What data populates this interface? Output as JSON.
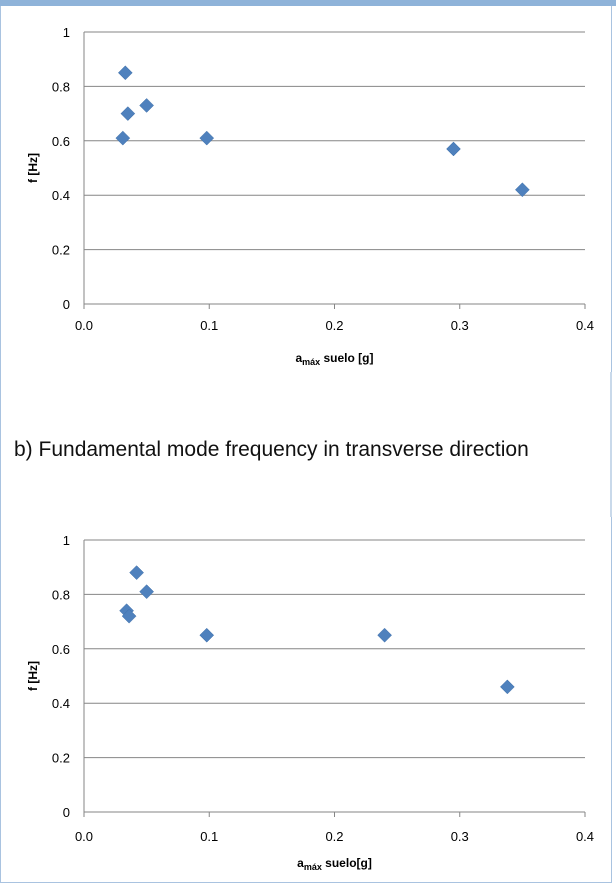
{
  "caption": "b) Fundamental mode frequency in transverse direction",
  "colors": {
    "marker": "#4f81bd",
    "grid": "#868686",
    "frame": "#a9c3e0"
  },
  "chart_data": [
    {
      "type": "scatter",
      "title": "",
      "xlabel": "amáx suelo [g]",
      "xlabel_main": "a",
      "xlabel_sub": "máx",
      "xlabel_rest": " suelo [g]",
      "ylabel": "f [Hz]",
      "xlim": [
        0.0,
        0.4
      ],
      "ylim": [
        0,
        1
      ],
      "xticks": [
        "0.0",
        "0.1",
        "0.2",
        "0.3",
        "0.4"
      ],
      "yticks": [
        "0",
        "0.2",
        "0.4",
        "0.6",
        "0.8",
        "1"
      ],
      "grid": "horizontal",
      "series": [
        {
          "marker": "diamond",
          "points": [
            {
              "x": 0.033,
              "y": 0.85
            },
            {
              "x": 0.035,
              "y": 0.7
            },
            {
              "x": 0.05,
              "y": 0.73
            },
            {
              "x": 0.031,
              "y": 0.61
            },
            {
              "x": 0.098,
              "y": 0.61
            },
            {
              "x": 0.295,
              "y": 0.57
            },
            {
              "x": 0.35,
              "y": 0.42
            }
          ]
        }
      ]
    },
    {
      "type": "scatter",
      "title": "",
      "xlabel": "amáx suelo[g]",
      "xlabel_main": "a",
      "xlabel_sub": "máx",
      "xlabel_rest": " suelo[g]",
      "ylabel": "f [Hz]",
      "xlim": [
        0.0,
        0.4
      ],
      "ylim": [
        0,
        1
      ],
      "xticks": [
        "0.0",
        "0.1",
        "0.2",
        "0.3",
        "0.4"
      ],
      "yticks": [
        "0",
        "0.2",
        "0.4",
        "0.6",
        "0.8",
        "1"
      ],
      "grid": "horizontal",
      "series": [
        {
          "marker": "diamond",
          "points": [
            {
              "x": 0.042,
              "y": 0.88
            },
            {
              "x": 0.05,
              "y": 0.81
            },
            {
              "x": 0.034,
              "y": 0.74
            },
            {
              "x": 0.036,
              "y": 0.72
            },
            {
              "x": 0.098,
              "y": 0.65
            },
            {
              "x": 0.24,
              "y": 0.65
            },
            {
              "x": 0.338,
              "y": 0.46
            }
          ]
        }
      ]
    }
  ]
}
